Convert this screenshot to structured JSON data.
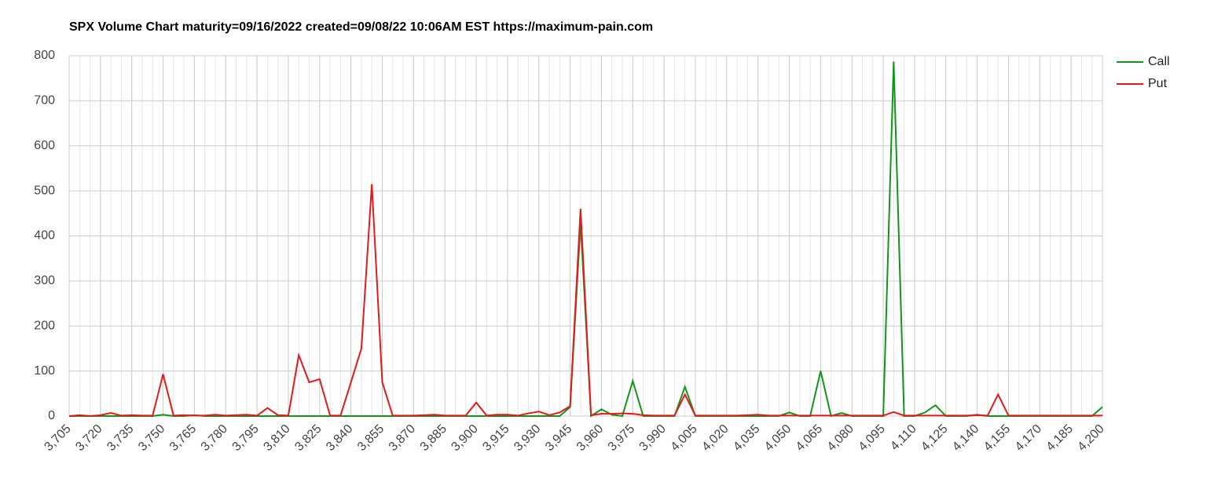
{
  "chart_data": {
    "type": "line",
    "title": "SPX Volume Chart maturity=09/16/2022 created=09/08/22 10:06AM EST https://maximum-pain.com",
    "x": [
      3705,
      3710,
      3715,
      3720,
      3725,
      3730,
      3735,
      3740,
      3745,
      3750,
      3755,
      3760,
      3765,
      3770,
      3775,
      3780,
      3785,
      3790,
      3795,
      3800,
      3805,
      3810,
      3815,
      3820,
      3825,
      3830,
      3835,
      3840,
      3845,
      3850,
      3855,
      3860,
      3865,
      3870,
      3875,
      3880,
      3885,
      3890,
      3895,
      3900,
      3905,
      3910,
      3915,
      3920,
      3925,
      3930,
      3935,
      3940,
      3945,
      3950,
      3955,
      3960,
      3965,
      3970,
      3975,
      3980,
      3985,
      3990,
      3995,
      4000,
      4005,
      4010,
      4015,
      4020,
      4025,
      4030,
      4035,
      4040,
      4045,
      4050,
      4055,
      4060,
      4065,
      4070,
      4075,
      4080,
      4085,
      4090,
      4095,
      4100,
      4105,
      4110,
      4115,
      4120,
      4125,
      4130,
      4135,
      4140,
      4145,
      4150,
      4155,
      4160,
      4165,
      4170,
      4175,
      4180,
      4185,
      4190,
      4195,
      4200
    ],
    "series": [
      {
        "name": "Call",
        "color": "#109618",
        "values": [
          0,
          0,
          0,
          0,
          0,
          0,
          0,
          0,
          0,
          3,
          0,
          0,
          2,
          0,
          0,
          0,
          0,
          0,
          0,
          0,
          0,
          0,
          0,
          0,
          0,
          0,
          0,
          0,
          0,
          0,
          0,
          0,
          0,
          0,
          0,
          0,
          0,
          0,
          0,
          0,
          0,
          0,
          0,
          0,
          0,
          0,
          0,
          0,
          20,
          430,
          0,
          15,
          3,
          0,
          78,
          0,
          0,
          0,
          0,
          65,
          0,
          0,
          0,
          0,
          0,
          0,
          0,
          0,
          0,
          8,
          0,
          0,
          100,
          0,
          7,
          0,
          0,
          0,
          0,
          787,
          0,
          0,
          8,
          24,
          0,
          0,
          0,
          3,
          0,
          0,
          0,
          0,
          0,
          0,
          0,
          0,
          0,
          0,
          0,
          20
        ]
      },
      {
        "name": "Put",
        "color": "#e31a1c",
        "values": [
          0,
          2,
          0,
          2,
          7,
          1,
          2,
          1,
          1,
          93,
          1,
          2,
          1,
          1,
          3,
          1,
          2,
          3,
          1,
          18,
          2,
          1,
          135,
          75,
          82,
          1,
          1,
          75,
          150,
          515,
          75,
          1,
          1,
          1,
          2,
          3,
          1,
          1,
          1,
          30,
          1,
          3,
          3,
          1,
          6,
          10,
          2,
          8,
          22,
          460,
          2,
          5,
          5,
          6,
          5,
          2,
          1,
          1,
          1,
          48,
          1,
          1,
          1,
          1,
          1,
          2,
          3,
          1,
          1,
          1,
          1,
          1,
          1,
          1,
          1,
          1,
          1,
          1,
          1,
          9,
          1,
          1,
          1,
          1,
          1,
          1,
          1,
          2,
          1,
          48,
          1,
          1,
          1,
          1,
          1,
          1,
          1,
          1,
          1,
          1
        ]
      }
    ],
    "xlim": [
      3705,
      4200
    ],
    "xticks": [
      {
        "value": 3705,
        "label": "3,705"
      },
      {
        "value": 3720,
        "label": "3,720"
      },
      {
        "value": 3735,
        "label": "3,735"
      },
      {
        "value": 3750,
        "label": "3,750"
      },
      {
        "value": 3765,
        "label": "3,765"
      },
      {
        "value": 3780,
        "label": "3,780"
      },
      {
        "value": 3795,
        "label": "3,795"
      },
      {
        "value": 3810,
        "label": "3,810"
      },
      {
        "value": 3825,
        "label": "3,825"
      },
      {
        "value": 3840,
        "label": "3,840"
      },
      {
        "value": 3855,
        "label": "3,855"
      },
      {
        "value": 3870,
        "label": "3,870"
      },
      {
        "value": 3885,
        "label": "3,885"
      },
      {
        "value": 3900,
        "label": "3,900"
      },
      {
        "value": 3915,
        "label": "3,915"
      },
      {
        "value": 3930,
        "label": "3,930"
      },
      {
        "value": 3945,
        "label": "3,945"
      },
      {
        "value": 3960,
        "label": "3,960"
      },
      {
        "value": 3975,
        "label": "3,975"
      },
      {
        "value": 3990,
        "label": "3,990"
      },
      {
        "value": 4005,
        "label": "4,005"
      },
      {
        "value": 4020,
        "label": "4,020"
      },
      {
        "value": 4035,
        "label": "4,035"
      },
      {
        "value": 4050,
        "label": "4,050"
      },
      {
        "value": 4065,
        "label": "4,065"
      },
      {
        "value": 4080,
        "label": "4,080"
      },
      {
        "value": 4095,
        "label": "4,095"
      },
      {
        "value": 4110,
        "label": "4,110"
      },
      {
        "value": 4125,
        "label": "4,125"
      },
      {
        "value": 4140,
        "label": "4,140"
      },
      {
        "value": 4155,
        "label": "4,155"
      },
      {
        "value": 4170,
        "label": "4,170"
      },
      {
        "value": 4185,
        "label": "4,185"
      },
      {
        "value": 4200,
        "label": "4,200"
      }
    ],
    "ylim": [
      0,
      800
    ],
    "yticks": [
      0,
      100,
      200,
      300,
      400,
      500,
      600,
      700,
      800
    ],
    "grid": true,
    "legend": "right"
  }
}
